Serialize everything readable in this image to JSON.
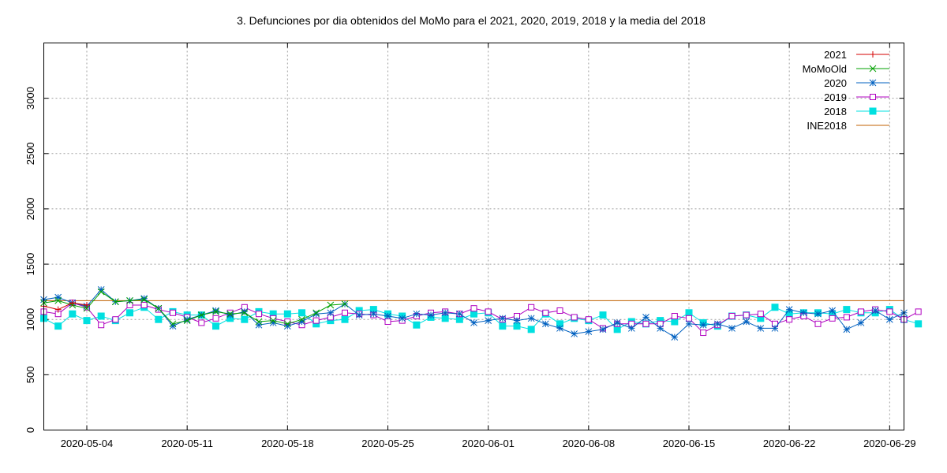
{
  "chart_data": {
    "type": "line",
    "title": "3. Defunciones por dia obtenidos del MoMo para el 2021, 2020, 2019, 2018 y la media del 2018",
    "xlabel": "",
    "ylabel": "",
    "x_start": "2020-05-01",
    "xlim": [
      0,
      60
    ],
    "ylim": [
      0,
      3500
    ],
    "yticks": [
      0,
      500,
      1000,
      1500,
      2000,
      2500,
      3000
    ],
    "xticks": [
      {
        "d": 3,
        "label": "2020-05-04"
      },
      {
        "d": 10,
        "label": "2020-05-11"
      },
      {
        "d": 17,
        "label": "2020-05-18"
      },
      {
        "d": 24,
        "label": "2020-05-25"
      },
      {
        "d": 31,
        "label": "2020-06-01"
      },
      {
        "d": 38,
        "label": "2020-06-08"
      },
      {
        "d": 45,
        "label": "2020-06-15"
      },
      {
        "d": 52,
        "label": "2020-06-22"
      },
      {
        "d": 59,
        "label": "2020-06-29"
      }
    ],
    "grid": true,
    "legend_position": "top-right",
    "series": [
      {
        "name": "2021",
        "color": "#d40000",
        "marker": "plus",
        "values": [
          1120,
          1090,
          1150,
          1130
        ]
      },
      {
        "name": "MoMoOld",
        "color": "#00a000",
        "marker": "x",
        "values": [
          1150,
          1170,
          1130,
          1100,
          1250,
          1160,
          1170,
          1180,
          1100,
          960,
          990,
          1040,
          1070,
          1050,
          1060,
          980,
          990,
          960,
          1000,
          1060,
          1130,
          1140
        ]
      },
      {
        "name": "2020",
        "color": "#0060c0",
        "marker": "star",
        "values": [
          1180,
          1200,
          1150,
          1120,
          1270,
          1160,
          1170,
          1190,
          1100,
          940,
          1000,
          1040,
          1080,
          1040,
          1070,
          950,
          970,
          940,
          980,
          1050,
          1060,
          1140,
          1040,
          1050,
          1030,
          1010,
          1050,
          1040,
          1060,
          1050,
          970,
          990,
          1010,
          990,
          1010,
          960,
          920,
          870,
          890,
          910,
          970,
          920,
          1020,
          920,
          840,
          960,
          950,
          960,
          920,
          980,
          920,
          920,
          1090,
          1060,
          1050,
          1080,
          910,
          970,
          1080,
          1000,
          1060
        ]
      },
      {
        "name": "2019",
        "color": "#b000c0",
        "marker": "square-open",
        "values": [
          1070,
          1050,
          1150,
          1110,
          950,
          1000,
          1130,
          1130,
          1090,
          1060,
          1020,
          970,
          1010,
          1060,
          1110,
          1050,
          1010,
          980,
          950,
          990,
          1020,
          1060,
          1050,
          1040,
          980,
          990,
          1030,
          1060,
          1070,
          1050,
          1100,
          1070,
          1000,
          1030,
          1110,
          1060,
          1080,
          1020,
          1000,
          920,
          960,
          960,
          960,
          960,
          1030,
          1010,
          880,
          950,
          1030,
          1040,
          1050,
          960,
          1000,
          1030,
          960,
          1010,
          1020,
          1070,
          1090,
          1070,
          1000,
          1070
        ]
      },
      {
        "name": "2018",
        "color": "#00e0e0",
        "marker": "square-filled",
        "values": [
          1010,
          940,
          1050,
          990,
          1030,
          990,
          1060,
          1110,
          1000,
          1070,
          1040,
          1040,
          940,
          1010,
          1000,
          1070,
          1050,
          1050,
          1060,
          960,
          990,
          1000,
          1080,
          1090,
          1050,
          1030,
          950,
          1020,
          1010,
          1000,
          1050,
          1060,
          940,
          940,
          910,
          1050,
          960,
          1010,
          990,
          1040,
          910,
          980,
          960,
          990,
          980,
          1060,
          970,
          940,
          1030,
          1040,
          1010,
          1110,
          1050,
          1060,
          1060,
          1050,
          1090,
          1060,
          1060,
          1090,
          1000,
          960
        ]
      },
      {
        "name": "INE2018",
        "color": "#c06000",
        "marker": "none",
        "constant": 1170
      }
    ]
  }
}
